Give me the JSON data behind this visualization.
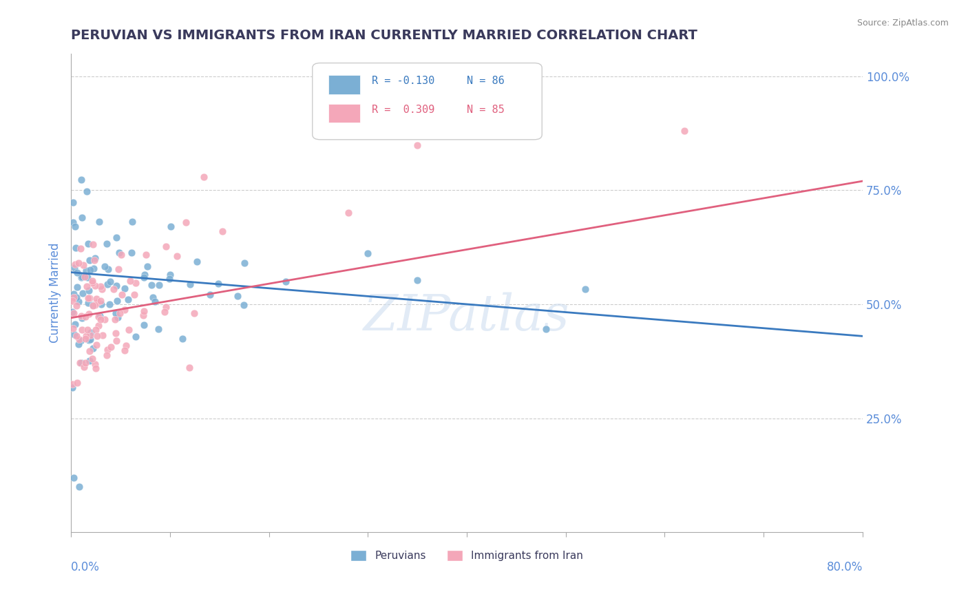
{
  "title": "PERUVIAN VS IMMIGRANTS FROM IRAN CURRENTLY MARRIED CORRELATION CHART",
  "source": "Source: ZipAtlas.com",
  "xlabel": "",
  "ylabel": "Currently Married",
  "xlim": [
    0.0,
    0.8
  ],
  "ylim": [
    0.0,
    1.05
  ],
  "xticks": [
    0.0,
    0.1,
    0.2,
    0.3,
    0.4,
    0.5,
    0.6,
    0.7,
    0.8
  ],
  "yticks": [
    0.25,
    0.5,
    0.75,
    1.0
  ],
  "yticklabels": [
    "25.0%",
    "50.0%",
    "75.0%",
    "100.0%"
  ],
  "blue_color": "#7bafd4",
  "pink_color": "#f4a7b9",
  "blue_line_color": "#3a7abf",
  "pink_line_color": "#e0607e",
  "legend_R_blue": "R = -0.130",
  "legend_N_blue": "N = 86",
  "legend_R_pink": "R =  0.309",
  "legend_N_pink": "N = 85",
  "legend_label_blue": "Peruvians",
  "legend_label_pink": "Immigrants from Iran",
  "watermark": "ZIPatlas",
  "title_color": "#3a3a5c",
  "axis_color": "#5b8dd9",
  "grid_color": "#cccccc",
  "background_color": "#ffffff",
  "blue_R": -0.13,
  "blue_N": 86,
  "pink_R": 0.309,
  "pink_N": 85
}
